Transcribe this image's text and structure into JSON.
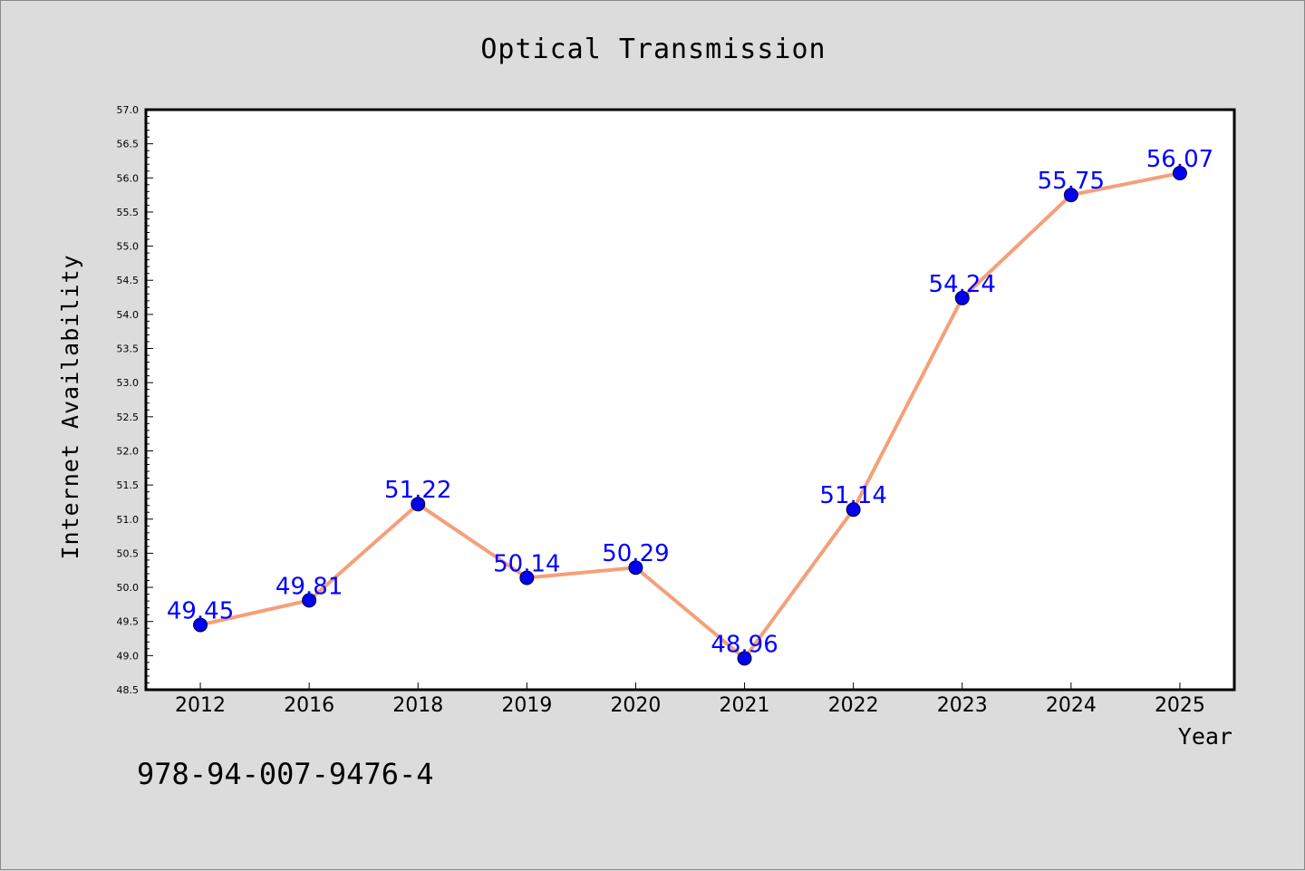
{
  "chart_data": {
    "type": "line",
    "title": "Optical Transmission",
    "xlabel": "Year",
    "ylabel": "Internet Availability",
    "categories": [
      "2012",
      "2016",
      "2018",
      "2019",
      "2020",
      "2021",
      "2022",
      "2023",
      "2024",
      "2025"
    ],
    "series": [
      {
        "values": [
          49.45,
          49.81,
          51.22,
          50.14,
          50.29,
          48.96,
          51.14,
          54.24,
          55.75,
          56.07
        ],
        "point_labels": [
          "49.45",
          "49.81",
          "51.22",
          "50.14",
          "50.29",
          "48.96",
          "51.14",
          "54.24",
          "55.75",
          "56.07"
        ]
      }
    ],
    "ylim": [
      48.5,
      57.0
    ],
    "yticks": [
      "48.5",
      "49.0",
      "49.5",
      "50.0",
      "50.5",
      "51.0",
      "51.5",
      "52.0",
      "52.5",
      "53.0",
      "53.5",
      "54.0",
      "54.5",
      "55.0",
      "55.5",
      "56.0",
      "56.5",
      "57.0"
    ],
    "grid": false,
    "colors": {
      "line": "#f4a07a",
      "marker": "#0000ee",
      "label": "#0000ff",
      "background": "#dcdcdc",
      "plot_background": "#ffffff"
    }
  },
  "annotation": "978-94-007-9476-4"
}
